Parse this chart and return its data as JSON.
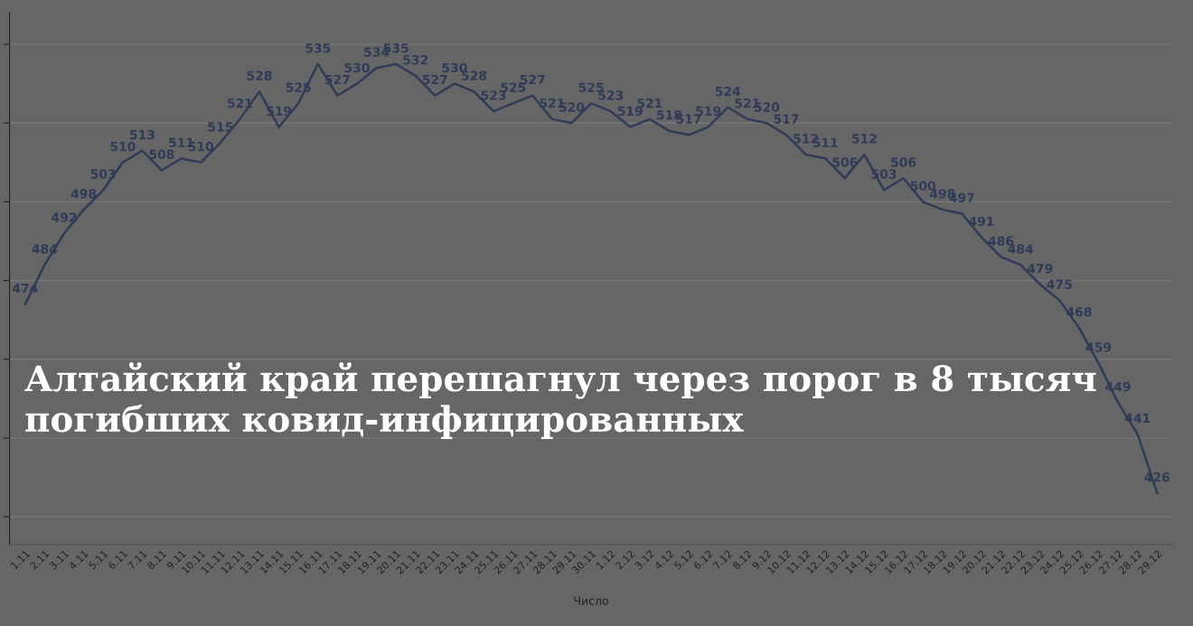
{
  "chart_data": {
    "type": "line",
    "title": "Алтайский край перешагнул через порог в 8 тысяч погибших ковид-инфицированных",
    "xlabel": "Число",
    "categories": [
      "1.11",
      "2.11",
      "3.11",
      "4.11",
      "5.11",
      "6.11",
      "7.11",
      "8.11",
      "9.11",
      "10.11",
      "11.11",
      "12.11",
      "13.11",
      "14.11",
      "15.11",
      "16.11",
      "17.11",
      "18.11",
      "19.11",
      "20.11",
      "21.11",
      "22.11",
      "23.11",
      "24.11",
      "25.11",
      "26.11",
      "27.11",
      "28.11",
      "29.11",
      "30.11",
      "1.12",
      "2.12",
      "3.12",
      "4.12",
      "5.12",
      "6.12",
      "7.12",
      "8.12",
      "9.12",
      "10.12",
      "11.12",
      "12.12",
      "13.12",
      "14.12",
      "15.12",
      "16.12",
      "17.12",
      "18.12",
      "19.12",
      "20.12",
      "21.12",
      "22.12",
      "23.12",
      "24.12",
      "25.12",
      "26.12",
      "27.12",
      "28.12",
      "29.12"
    ],
    "series": [
      {
        "color": "#2f3b57",
        "values": [
          474,
          484,
          492,
          498,
          503,
          510,
          513,
          508,
          511,
          510,
          515,
          521,
          528,
          519,
          525,
          535,
          527,
          530,
          534,
          535,
          532,
          527,
          530,
          528,
          523,
          525,
          527,
          521,
          520,
          525,
          523,
          519,
          521,
          518,
          517,
          519,
          524,
          521,
          520,
          517,
          512,
          511,
          506,
          512,
          503,
          506,
          500,
          498,
          497,
          491,
          486,
          484,
          479,
          475,
          468,
          459,
          449,
          441,
          426
        ]
      }
    ],
    "data_labels": true,
    "grid": "y",
    "tick_labels": "x",
    "marker": "none",
    "line_style": "solid"
  }
}
